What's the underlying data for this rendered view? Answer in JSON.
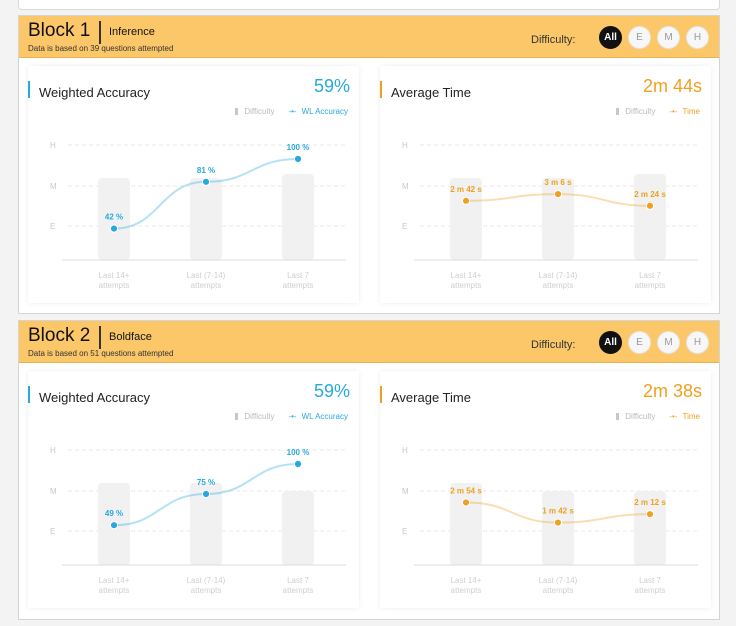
{
  "difficulty_label": "Difficulty:",
  "difficulty_options": [
    "All",
    "E",
    "M",
    "H"
  ],
  "active_difficulty": "All",
  "colors": {
    "accuracy": "#28a9de",
    "time": "#f0a020",
    "header": "#fbc769",
    "bar": "#f1f1f1"
  },
  "y_axis_labels": [
    "H",
    "M",
    "E"
  ],
  "x_categories": [
    "Last 14+\nattempts",
    "Last (7-14)\nattempts",
    "Last 7\nattempts"
  ],
  "blocks": [
    {
      "title": "Block 1",
      "topic": "Inference",
      "subtitle": "Data is based on 39 questions attempted",
      "accuracy": {
        "title": "Weighted Accuracy",
        "value": "59%",
        "legend_bar": "Difficulty",
        "legend_line": "WL Accuracy",
        "bar_levels": [
          2.2,
          2.2,
          2.3
        ],
        "points": [
          42,
          81,
          100
        ],
        "point_labels": [
          "42 %",
          "81 %",
          "100 %"
        ]
      },
      "time": {
        "title": "Average Time",
        "value": "2m 44s",
        "legend_bar": "Difficulty",
        "legend_line": "Time",
        "bar_levels": [
          2.2,
          2.2,
          2.3
        ],
        "points_seconds": [
          162,
          186,
          144
        ],
        "point_labels": [
          "2 m 42 s",
          "3 m 6 s",
          "2 m 24 s"
        ]
      }
    },
    {
      "title": "Block 2",
      "topic": "Boldface",
      "subtitle": "Data is based on 51 questions attempted",
      "accuracy": {
        "title": "Weighted Accuracy",
        "value": "59%",
        "legend_bar": "Difficulty",
        "legend_line": "WL Accuracy",
        "bar_levels": [
          2.2,
          2.2,
          2.0
        ],
        "points": [
          49,
          75,
          100
        ],
        "point_labels": [
          "49 %",
          "75 %",
          "100 %"
        ]
      },
      "time": {
        "title": "Average Time",
        "value": "2m 38s",
        "legend_bar": "Difficulty",
        "legend_line": "Time",
        "bar_levels": [
          2.2,
          2.0,
          2.0
        ],
        "points_seconds": [
          174,
          102,
          132
        ],
        "point_labels": [
          "2 m 54 s",
          "1 m 42 s",
          "2 m 12 s"
        ]
      }
    }
  ]
}
